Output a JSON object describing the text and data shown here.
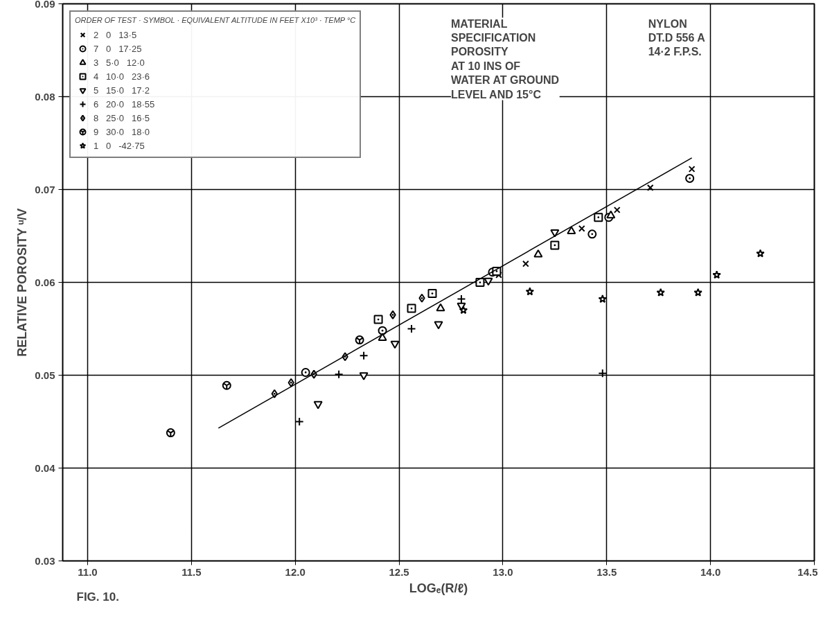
{
  "chart_data": {
    "type": "scatter",
    "xlabel": "LOGₑ(R/ℓ)",
    "ylabel": "RELATIVE POROSITY ᵘ/V",
    "legend_title": "ORDER OF TEST · SYMBOL · EQUIVALENT ALTITUDE IN FEET X10³ · TEMP °C",
    "annotations": [
      "MATERIAL\nSPECIFICATION\nPOROSITY\nAT 10 INS OF\nWATER AT GROUND\nLEVEL AND 15°C",
      "NYLON\nDT.D 556 A\n14·2 F.P.S.",
      "FIG. 10."
    ],
    "xlim": [
      10.88,
      14.5
    ],
    "ylim": [
      0.03,
      0.09
    ],
    "xticks": [
      {
        "value": 11.0,
        "label": "11.0"
      },
      {
        "value": 11.5,
        "label": "11.5"
      },
      {
        "value": 12.0,
        "label": "12.0"
      },
      {
        "value": 12.5,
        "label": "12.5"
      },
      {
        "value": 13.0,
        "label": "13.0"
      },
      {
        "value": 13.5,
        "label": "13.5"
      },
      {
        "value": 14.0,
        "label": "14.0"
      },
      {
        "value": 14.5,
        "label": "14.5"
      }
    ],
    "yticks": [
      0.03,
      0.04,
      0.05,
      0.06,
      0.07,
      0.08,
      0.09
    ],
    "grid": true,
    "legend": "top left",
    "series": [
      {
        "name": "2   0   13·5",
        "marker": "cross",
        "color": "#000000",
        "x": [
          13.91,
          13.71,
          13.55,
          13.38,
          13.11,
          12.98
        ],
        "values": [
          0.0722,
          0.0702,
          0.0678,
          0.0658,
          0.062,
          0.0608
        ]
      },
      {
        "name": "7   0   17·25",
        "marker": "circle",
        "color": "#000000",
        "x": [
          12.05,
          12.42,
          12.95,
          13.51,
          13.9,
          13.43
        ],
        "values": [
          0.0503,
          0.0548,
          0.0611,
          0.067,
          0.0712,
          0.0652
        ]
      },
      {
        "name": "3   5·0   12·0",
        "marker": "triangle",
        "color": "#000000",
        "x": [
          13.52,
          13.33,
          12.7,
          12.42,
          13.17
        ],
        "values": [
          0.0672,
          0.0655,
          0.0572,
          0.054,
          0.063
        ]
      },
      {
        "name": "4   10·0   23·6",
        "marker": "square",
        "color": "#000000",
        "x": [
          12.4,
          12.56,
          12.66,
          12.97,
          13.25,
          13.46,
          12.89
        ],
        "values": [
          0.056,
          0.0572,
          0.0588,
          0.0612,
          0.064,
          0.067,
          0.06
        ]
      },
      {
        "name": "5   15·0   17·2",
        "marker": "triangle",
        "color": "#000000",
        "x": [
          12.11,
          12.33,
          12.69,
          12.8,
          13.25,
          12.48,
          12.93
        ],
        "values": [
          0.0469,
          0.05,
          0.0555,
          0.0575,
          0.0654,
          0.0534,
          0.0602
        ]
      },
      {
        "name": "6   20·0   18·55",
        "marker": "cross",
        "color": "#000000",
        "x": [
          12.02,
          12.21,
          12.33,
          12.56,
          12.8,
          13.48
        ],
        "values": [
          0.045,
          0.0501,
          0.0521,
          0.055,
          0.0582,
          0.0502
        ]
      },
      {
        "name": "8   25·0   16·5",
        "marker": "diamond",
        "color": "#000000",
        "x": [
          11.9,
          11.98,
          12.09,
          12.24,
          12.47,
          12.61
        ],
        "values": [
          0.048,
          0.0492,
          0.0501,
          0.052,
          0.0565,
          0.0583
        ]
      },
      {
        "name": "9   30·0   18·0",
        "color": "#000000",
        "x": [
          11.4,
          11.67,
          12.31
        ],
        "values": [
          0.0438,
          0.0489,
          0.0538
        ]
      },
      {
        "name": "1   0   -42·75",
        "marker": "star",
        "color": "#000000",
        "x": [
          14.24,
          14.03,
          13.94,
          13.76,
          13.48,
          13.13,
          12.81
        ],
        "values": [
          0.0631,
          0.0608,
          0.0589,
          0.0589,
          0.0582,
          0.059,
          0.057
        ]
      },
      {
        "type": "line",
        "color": "#000000",
        "x": [
          11.63,
          13.91
        ],
        "values": [
          0.0443,
          0.0734
        ]
      }
    ]
  }
}
